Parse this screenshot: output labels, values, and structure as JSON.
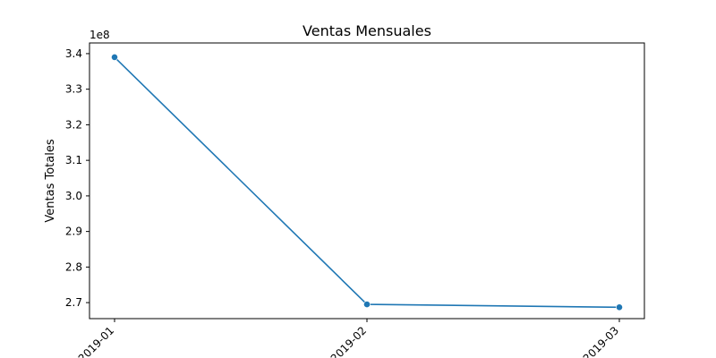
{
  "chart_data": {
    "type": "line",
    "title": "Ventas Mensuales",
    "xlabel": "",
    "ylabel": "Ventas Totales",
    "y_offset_label": "1e8",
    "categories": [
      "2019-01",
      "2019-02",
      "2019-03"
    ],
    "y_scale_factor": 100000000,
    "series": [
      {
        "values": [
          3.39,
          2.695,
          2.687
        ]
      }
    ],
    "ylim": [
      2.655,
      3.43
    ],
    "yticks": [
      "2.7",
      "2.8",
      "2.9",
      "3.0",
      "3.1",
      "3.2",
      "3.3",
      "3.4"
    ],
    "grid": false,
    "legend": "none",
    "colors": {
      "line": "#1f77b4",
      "axes": "#000000"
    },
    "marker": "circle"
  }
}
